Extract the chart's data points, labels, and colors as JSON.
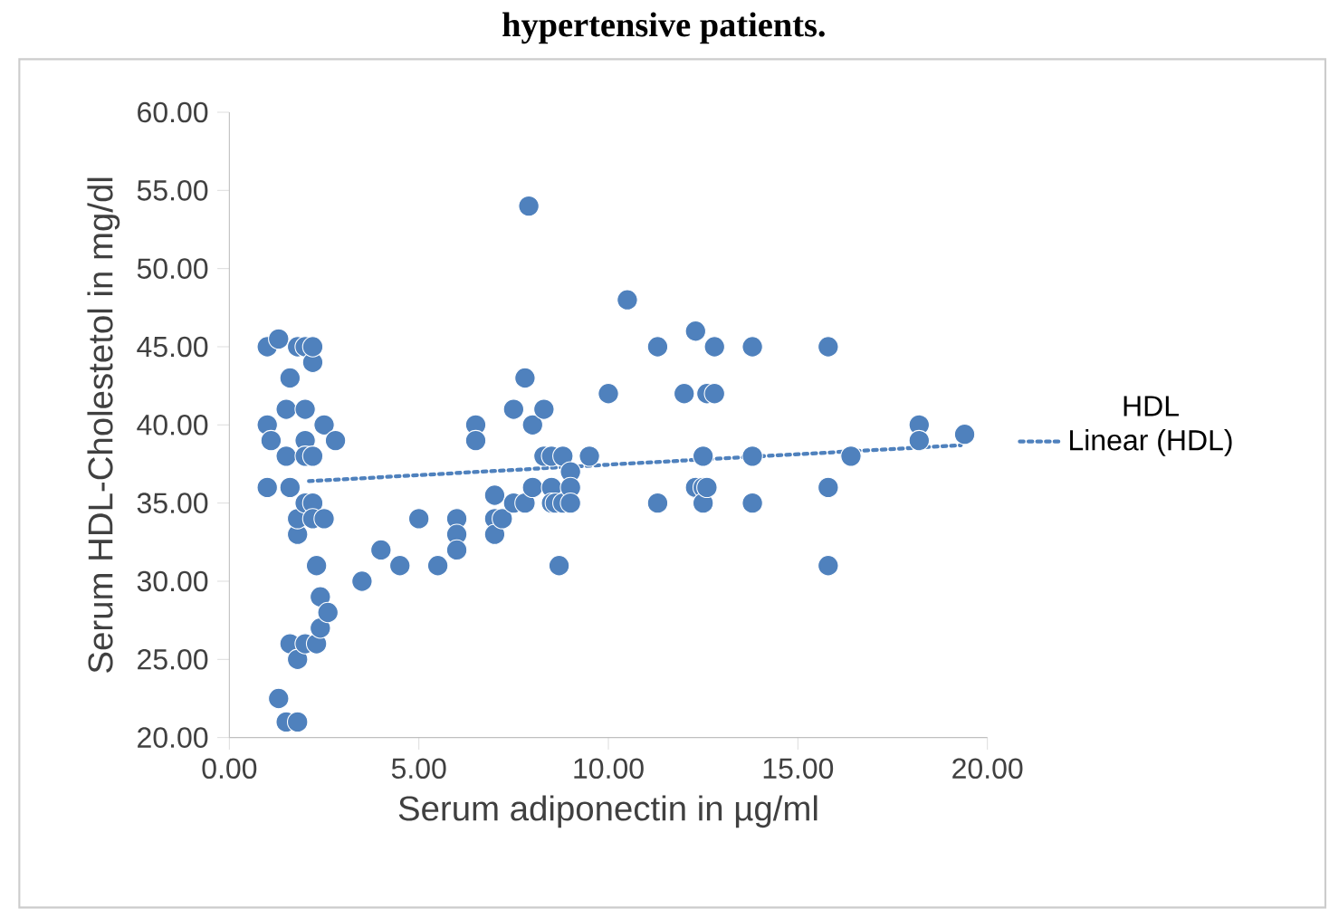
{
  "chart_data": {
    "type": "scatter",
    "title": "hypertensive patients.",
    "xlabel": "Serum adiponectin in µg/ml",
    "ylabel": "Serum HDL-Cholestetol in mg/dl",
    "xlim": [
      0,
      20
    ],
    "xticks": [
      {
        "value": 0,
        "label": "0.00"
      },
      {
        "value": 5,
        "label": "5.00"
      },
      {
        "value": 10,
        "label": "10.00"
      },
      {
        "value": 15,
        "label": "15.00"
      },
      {
        "value": 20,
        "label": "20.00"
      }
    ],
    "ylim": [
      20,
      60
    ],
    "yticks": [
      {
        "value": 20,
        "label": "20.00"
      },
      {
        "value": 25,
        "label": "25.00"
      },
      {
        "value": 30,
        "label": "30.00"
      },
      {
        "value": 35,
        "label": "35.00"
      },
      {
        "value": 40,
        "label": "40.00"
      },
      {
        "value": 45,
        "label": "45.00"
      },
      {
        "value": 50,
        "label": "50.00"
      },
      {
        "value": 55,
        "label": "55.00"
      },
      {
        "value": 60,
        "label": "60.00"
      }
    ],
    "grid": false,
    "legend": "right",
    "marker": "circle",
    "series": [
      {
        "name": "HDL",
        "color": "#4f81bd",
        "x": [
          1.0,
          1.0,
          1.0,
          1.1,
          1.3,
          1.3,
          1.5,
          1.5,
          1.5,
          1.6,
          1.6,
          1.6,
          1.8,
          1.8,
          1.8,
          1.8,
          1.8,
          2.0,
          2.0,
          2.0,
          2.0,
          2.0,
          2.0,
          2.2,
          2.2,
          2.2,
          2.2,
          2.2,
          2.3,
          2.3,
          2.4,
          2.4,
          2.5,
          2.5,
          2.6,
          2.8,
          3.5,
          4.0,
          4.5,
          5.0,
          5.5,
          6.0,
          6.0,
          6.0,
          6.5,
          6.5,
          7.0,
          7.0,
          7.0,
          7.2,
          7.5,
          7.5,
          7.8,
          7.9,
          7.8,
          8.0,
          8.0,
          8.3,
          8.3,
          8.5,
          8.5,
          8.5,
          8.6,
          8.7,
          8.8,
          8.8,
          9.0,
          9.0,
          9.0,
          9.5,
          10.0,
          10.5,
          11.3,
          11.3,
          12.0,
          12.3,
          12.3,
          12.5,
          12.5,
          12.5,
          12.6,
          12.6,
          12.8,
          12.8,
          13.8,
          13.8,
          13.8,
          15.8,
          15.8,
          15.8,
          16.4,
          18.2,
          18.2,
          19.4
        ],
        "values": [
          45,
          40,
          36,
          39,
          45.5,
          22.5,
          21,
          41,
          38,
          43,
          26,
          36,
          45,
          33,
          34,
          25,
          21,
          45,
          41,
          39,
          38,
          35,
          26,
          44,
          45,
          35,
          34,
          38,
          31,
          26,
          29,
          27,
          40,
          34,
          28,
          39,
          30,
          32,
          31,
          34,
          31,
          34,
          33,
          32,
          40,
          39,
          35.5,
          34,
          33,
          34,
          41,
          35,
          43,
          54,
          35,
          40,
          36,
          41,
          38,
          38,
          36,
          35,
          35,
          31,
          38,
          35,
          37,
          36,
          35,
          38,
          42,
          48,
          45,
          35,
          42,
          46,
          36,
          38,
          36,
          35,
          42,
          36,
          45,
          42,
          45,
          38,
          35,
          45,
          36,
          31,
          38,
          40,
          39,
          39.4
        ]
      },
      {
        "name": "Linear (HDL)",
        "color": "#4f81bd",
        "type": "line",
        "line_style": "dotted",
        "marker": "none",
        "x": [
          2.1,
          19.3
        ],
        "values": [
          36.4,
          38.7
        ]
      }
    ]
  }
}
